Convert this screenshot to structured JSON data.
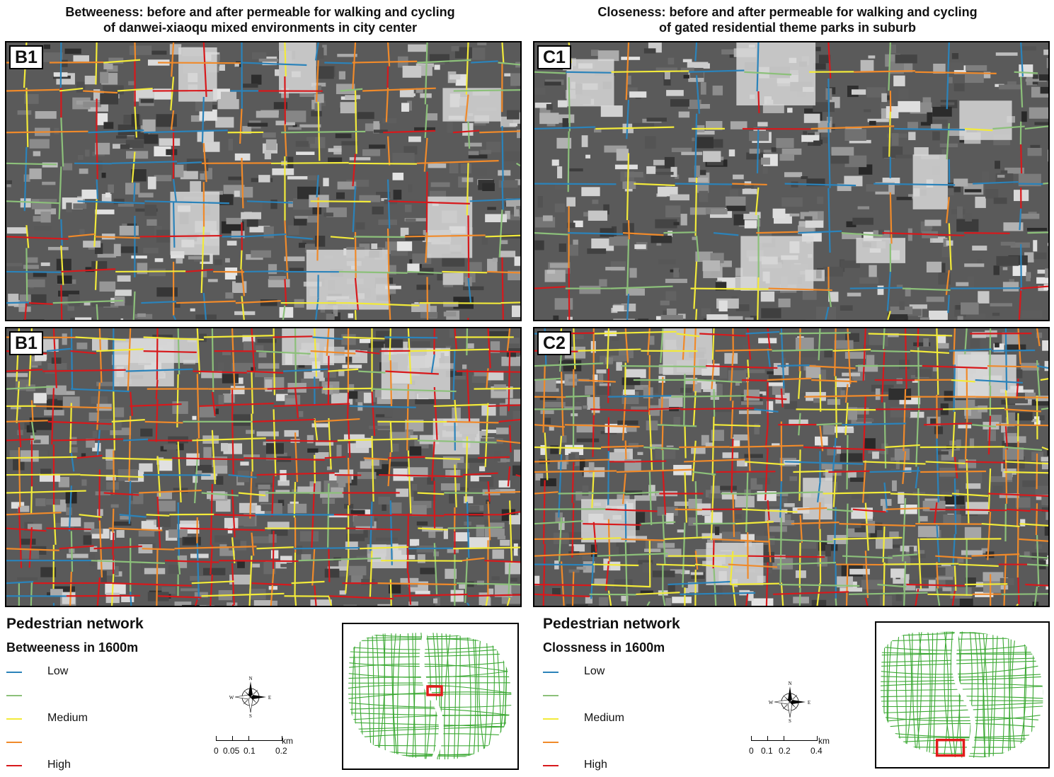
{
  "titles": {
    "left": "Betweeness: before and after permeable for walking and cycling\nof danwei-xiaoqu mixed environments in city center",
    "right": "Closeness: before and after permeable for walking and cycling\nof gated residential theme parks in suburb"
  },
  "panels": {
    "top_left": {
      "label": "B1"
    },
    "bottom_left": {
      "label": "B1"
    },
    "top_right": {
      "label": "C1"
    },
    "bottom_right": {
      "label": "C2"
    }
  },
  "legend_left": {
    "heading": "Pedestrian network",
    "subheading": "Betweeness in 1600m",
    "items": [
      {
        "label": "Low",
        "color": "#2b83ba"
      },
      {
        "label": "",
        "color": "#8cc07a"
      },
      {
        "label": "Medium",
        "color": "#f2ea3a"
      },
      {
        "label": "",
        "color": "#f08a2a"
      },
      {
        "label": "High",
        "color": "#d7191c"
      }
    ],
    "scale_ticks": [
      "0",
      "0.05",
      "0.1",
      "0.2"
    ],
    "scale_unit": "km"
  },
  "legend_right": {
    "heading": "Pedestrian network",
    "subheading": "Clossness in 1600m",
    "items": [
      {
        "label": "Low",
        "color": "#2b83ba"
      },
      {
        "label": "",
        "color": "#8cc07a"
      },
      {
        "label": "Medium",
        "color": "#f2ea3a"
      },
      {
        "label": "",
        "color": "#f08a2a"
      },
      {
        "label": "High",
        "color": "#d7191c"
      }
    ],
    "scale_ticks": [
      "0",
      "0.1",
      "0.2",
      "0.4"
    ],
    "scale_unit": "km"
  },
  "compass_letters": {
    "n": "N",
    "s": "S",
    "e": "E",
    "w": "W"
  },
  "colors": {
    "low": "#2b83ba",
    "low_medium": "#8cc07a",
    "medium": "#f2ea3a",
    "medium_high": "#f08a2a",
    "high": "#d7191c",
    "inset_network": "#3aa832",
    "inset_marker": "#e21b1b"
  }
}
